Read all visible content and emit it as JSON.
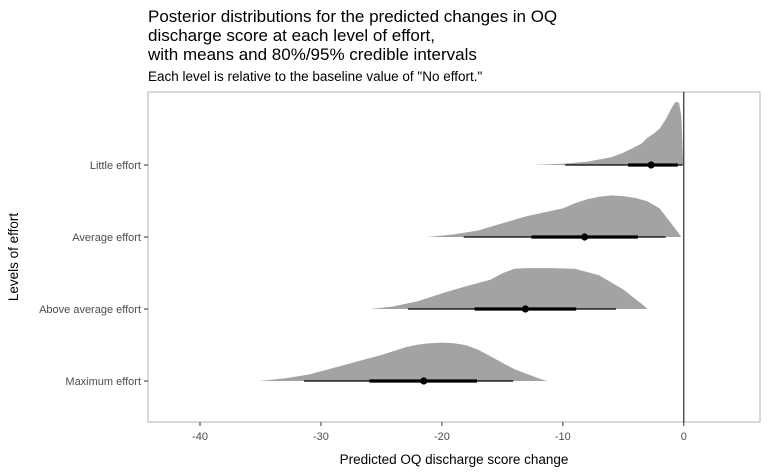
{
  "title_lines": [
    "Posterior distributions for the predicted changes in OQ",
    "discharge score at each level of effort,",
    "with means and 80%/95% credible intervals"
  ],
  "subtitle": "Each level is relative to the baseline value of \"No effort.\"",
  "chart_data": {
    "type": "area",
    "title": "Posterior distributions for the predicted changes in OQ discharge score at each level of effort, with means and 80%/95% credible intervals",
    "subtitle": "Each level is relative to the baseline value of \"No effort.\"",
    "xlabel": "Predicted OQ discharge score change",
    "ylabel": "Levels of effort",
    "xlim": [
      -44.3,
      6.3
    ],
    "x_ticks": [
      -40,
      -30,
      -20,
      -10,
      0
    ],
    "x_tick_labels": [
      "-40",
      "-30",
      "-20",
      "-10",
      "0"
    ],
    "reference_line_x": 0,
    "grid": false,
    "series": [
      {
        "name": "Little effort",
        "mean": -2.7,
        "ci80": [
          -4.6,
          -0.5
        ],
        "ci95": [
          -9.8,
          -0.1
        ],
        "density": {
          "x": [
            -12.5,
            -10,
            -8,
            -6,
            -5,
            -4,
            -3.5,
            -3,
            -2.5,
            -2,
            -1.5,
            -1,
            -0.7,
            -0.4,
            -0.2,
            -0.05
          ],
          "height": [
            0.0,
            0.02,
            0.05,
            0.12,
            0.19,
            0.28,
            0.33,
            0.42,
            0.48,
            0.56,
            0.7,
            0.88,
            0.97,
            0.96,
            0.75,
            0.0
          ]
        }
      },
      {
        "name": "Average effort",
        "mean": -8.2,
        "ci80": [
          -12.6,
          -3.8
        ],
        "ci95": [
          -18.2,
          -1.5
        ],
        "density": {
          "x": [
            -21.2,
            -19,
            -17,
            -15,
            -13,
            -11.5,
            -10,
            -9,
            -8,
            -7,
            -6,
            -5,
            -4,
            -3,
            -2,
            -1,
            -0.2
          ],
          "height": [
            0.0,
            0.04,
            0.1,
            0.21,
            0.32,
            0.38,
            0.44,
            0.52,
            0.58,
            0.62,
            0.64,
            0.63,
            0.6,
            0.55,
            0.44,
            0.2,
            0.0
          ]
        }
      },
      {
        "name": "Above average effort",
        "mean": -13.1,
        "ci80": [
          -17.3,
          -8.9
        ],
        "ci95": [
          -22.8,
          -5.6
        ],
        "density": {
          "x": [
            -25.9,
            -24,
            -22,
            -20,
            -18,
            -16,
            -15,
            -14,
            -13,
            -11,
            -9,
            -7,
            -5,
            -3.5,
            -3.0
          ],
          "height": [
            0.0,
            0.04,
            0.12,
            0.24,
            0.35,
            0.45,
            0.55,
            0.62,
            0.63,
            0.63,
            0.62,
            0.52,
            0.3,
            0.08,
            0.0
          ]
        }
      },
      {
        "name": "Maximum effort",
        "mean": -21.5,
        "ci80": [
          -26.0,
          -17.1
        ],
        "ci95": [
          -31.4,
          -14.1
        ],
        "density": {
          "x": [
            -35.1,
            -33,
            -31,
            -29,
            -27,
            -25,
            -23,
            -22,
            -21,
            -20,
            -19,
            -18,
            -17,
            -16,
            -14,
            -12,
            -11.3
          ],
          "height": [
            0.0,
            0.04,
            0.1,
            0.2,
            0.3,
            0.4,
            0.52,
            0.56,
            0.58,
            0.59,
            0.58,
            0.55,
            0.48,
            0.38,
            0.18,
            0.04,
            0.0
          ]
        }
      }
    ]
  }
}
